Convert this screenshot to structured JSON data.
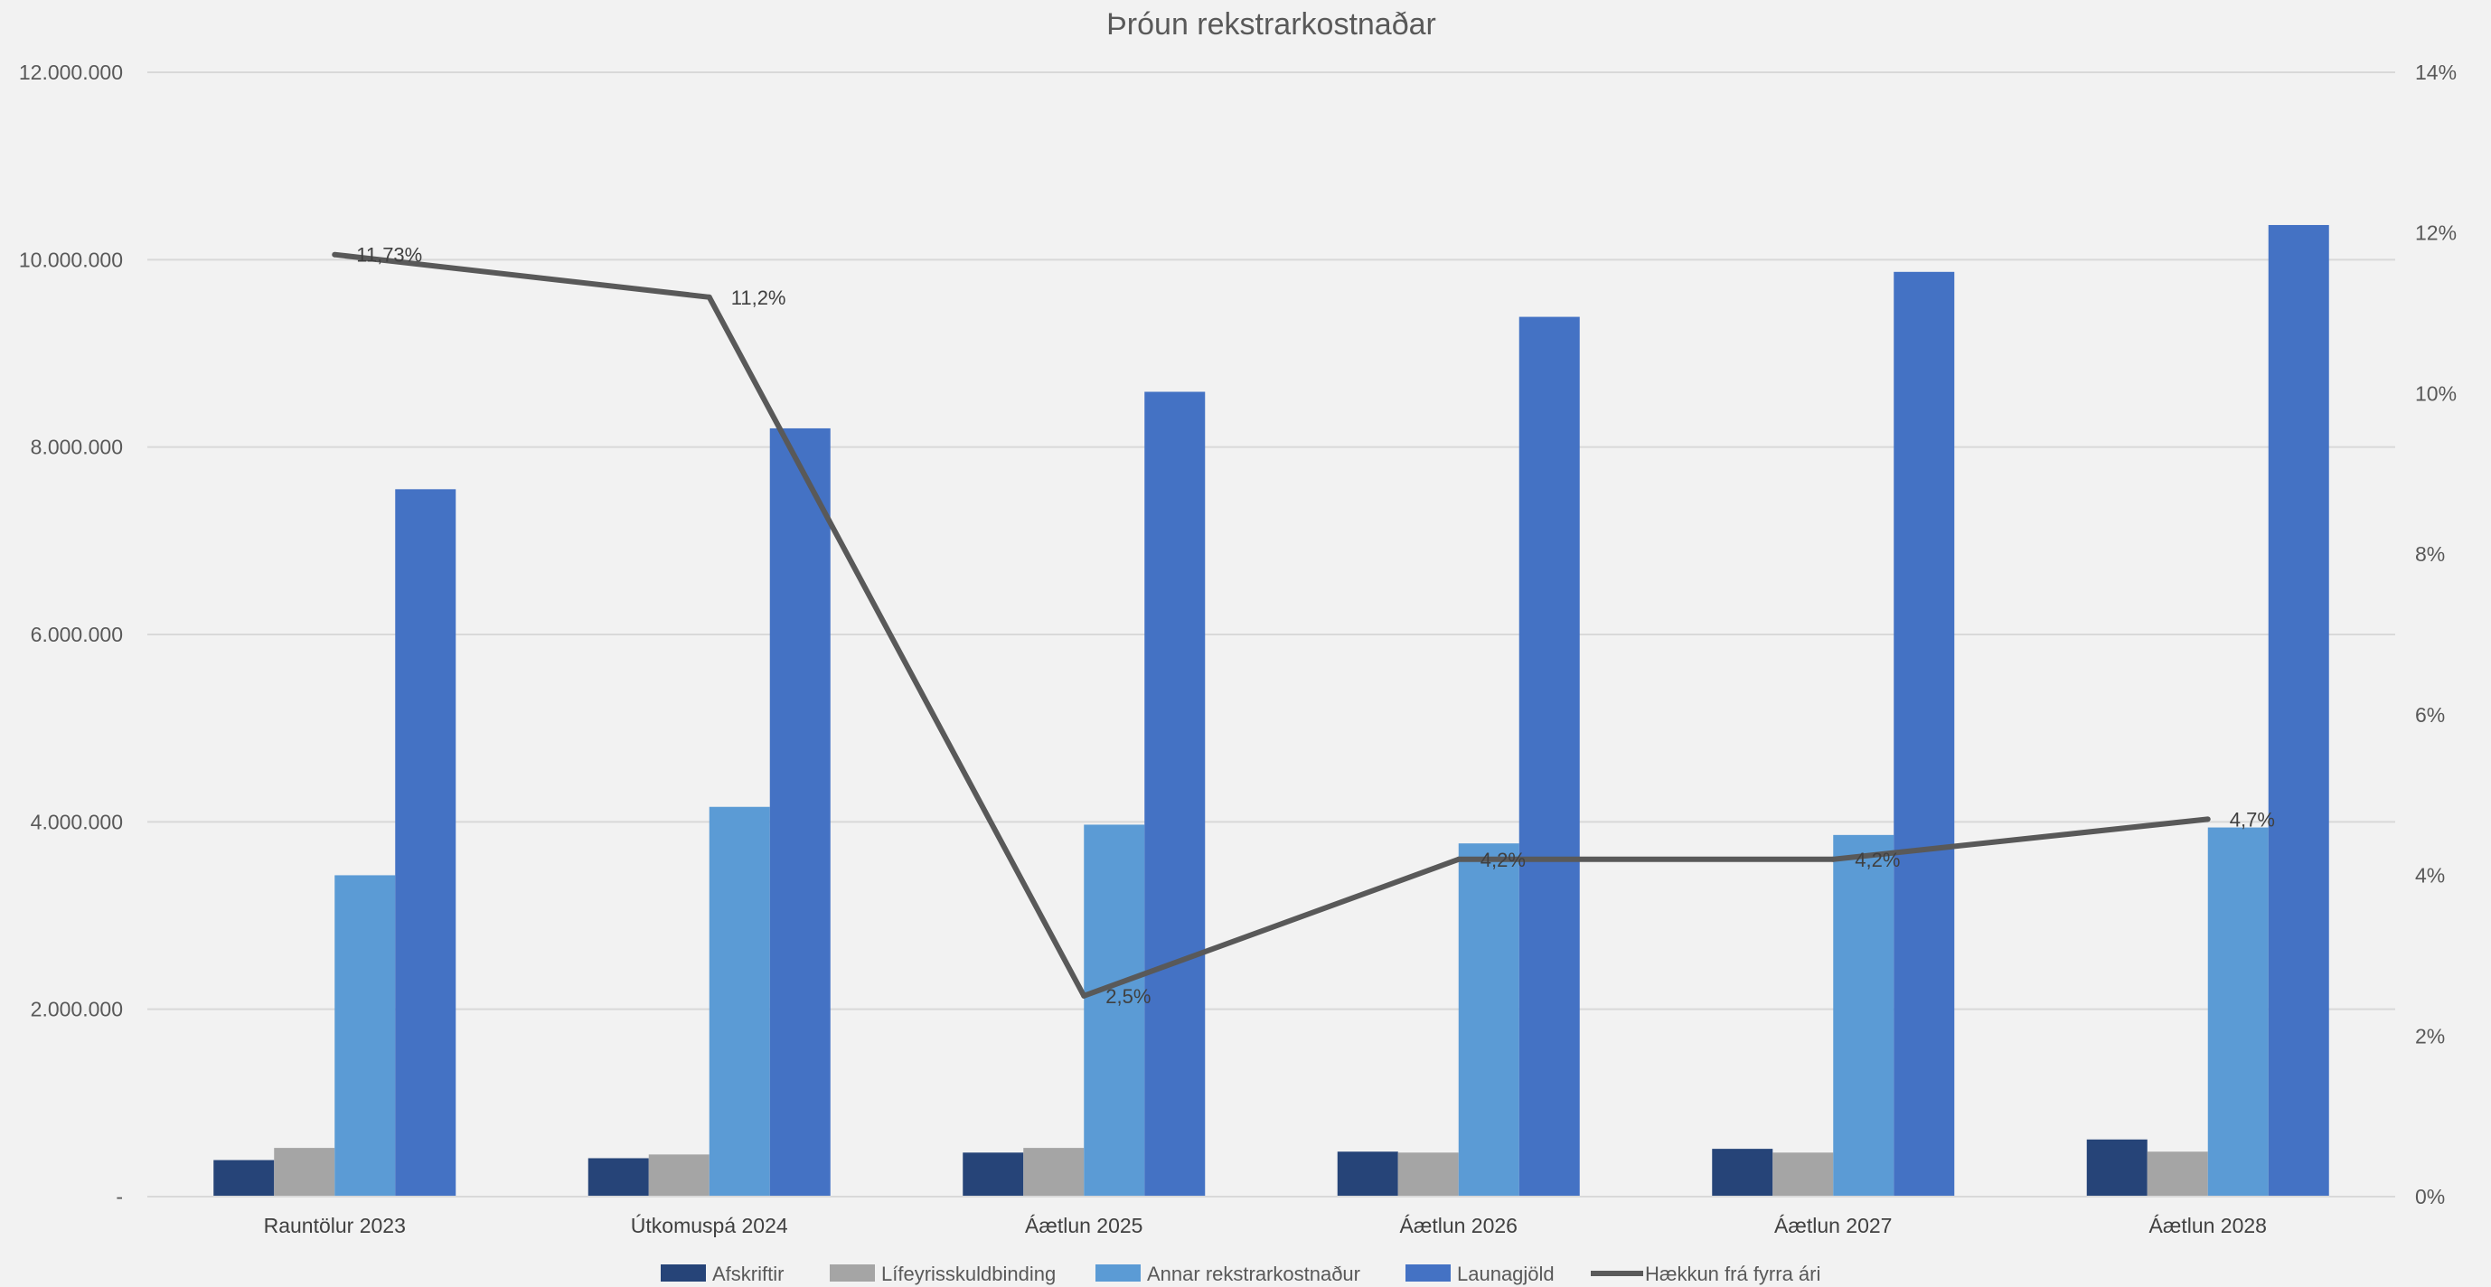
{
  "chart_data": {
    "type": "bar",
    "title": "Þróun rekstrarkostnaðar",
    "categories": [
      "Rauntölur 2023",
      "Útkomuspá 2024",
      "Áætlun 2025",
      "Áætlun 2026",
      "Áætlun 2027",
      "Áætlun 2028"
    ],
    "series": [
      {
        "name": "Afskriftir",
        "type": "bar",
        "axis": "left",
        "color": "#264478",
        "values": [
          390000,
          410000,
          470000,
          480000,
          510000,
          610000
        ]
      },
      {
        "name": "Lífeyrisskuldbinding",
        "type": "bar",
        "axis": "left",
        "color": "#a5a5a5",
        "values": [
          520000,
          450000,
          520000,
          470000,
          470000,
          480000
        ]
      },
      {
        "name": "Annar rekstrarkostnaður",
        "type": "bar",
        "axis": "left",
        "color": "#5b9bd5",
        "values": [
          3430000,
          4160000,
          3970000,
          3770000,
          3860000,
          3940000
        ]
      },
      {
        "name": "Launagjöld",
        "type": "bar",
        "axis": "left",
        "color": "#4472c4",
        "values": [
          7550000,
          8200000,
          8590000,
          9390000,
          9870000,
          10370000
        ]
      },
      {
        "name": "Hækkun frá fyrra ári",
        "type": "line",
        "axis": "right",
        "color": "#595959",
        "values": [
          11.73,
          11.2,
          2.5,
          4.2,
          4.2,
          4.7
        ],
        "labels": [
          "11,73%",
          "11,2%",
          "2,5%",
          "4,2%",
          "4,2%",
          "4,7%"
        ]
      }
    ],
    "y_left": {
      "min": 0,
      "max": 12000000,
      "ticks": [
        0,
        2000000,
        4000000,
        6000000,
        8000000,
        10000000,
        12000000
      ],
      "tick_labels": [
        "-",
        "2.000.000",
        "4.000.000",
        "6.000.000",
        "8.000.000",
        "10.000.000",
        "12.000.000"
      ]
    },
    "y_right": {
      "min": 0,
      "max": 14,
      "ticks": [
        0,
        2,
        4,
        6,
        8,
        10,
        12,
        14
      ],
      "tick_labels": [
        "0%",
        "2%",
        "4%",
        "6%",
        "8%",
        "10%",
        "12%",
        "14%"
      ]
    },
    "grid": true,
    "legend": "bottom",
    "gridline_color": "#d9d9d9"
  }
}
